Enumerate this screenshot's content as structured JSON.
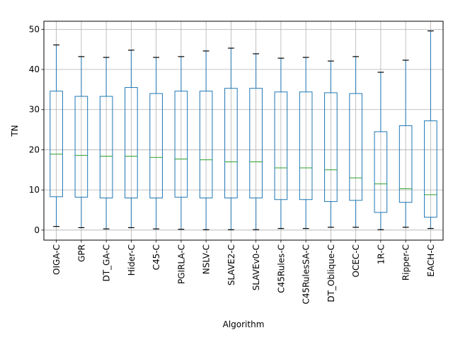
{
  "chart_data": {
    "type": "box",
    "xlabel": "Algorithm",
    "ylabel": "TN",
    "ylim": [
      -2.5,
      52
    ],
    "yticks": [
      0,
      10,
      20,
      30,
      40,
      50
    ],
    "grid": true,
    "categories": [
      "OIGA-C",
      "GPR",
      "DT_GA-C",
      "Hider-C",
      "C45-C",
      "PGIRLA-C",
      "NSLV-C",
      "SLAVE2-C",
      "SLAVEv0-C",
      "C45Rules-C",
      "C45RulesSA-C",
      "DT_Oblique-C",
      "OCEC-C",
      "1R-C",
      "Ripper-C",
      "EACH-C"
    ],
    "boxes": [
      {
        "min": 0.9,
        "q1": 8.3,
        "median": 18.9,
        "q3": 34.6,
        "max": 46.1
      },
      {
        "min": 0.6,
        "q1": 8.2,
        "median": 18.6,
        "q3": 33.3,
        "max": 43.2
      },
      {
        "min": 0.3,
        "q1": 8.0,
        "median": 18.4,
        "q3": 33.3,
        "max": 43.0
      },
      {
        "min": 0.6,
        "q1": 8.0,
        "median": 18.4,
        "q3": 35.5,
        "max": 44.8
      },
      {
        "min": 0.3,
        "q1": 8.0,
        "median": 18.1,
        "q3": 34.0,
        "max": 43.0
      },
      {
        "min": 0.2,
        "q1": 8.2,
        "median": 17.7,
        "q3": 34.6,
        "max": 43.2
      },
      {
        "min": 0.1,
        "q1": 8.0,
        "median": 17.5,
        "q3": 34.6,
        "max": 44.6
      },
      {
        "min": 0.1,
        "q1": 8.0,
        "median": 17.0,
        "q3": 35.3,
        "max": 45.3
      },
      {
        "min": 0.1,
        "q1": 8.0,
        "median": 17.0,
        "q3": 35.3,
        "max": 43.9
      },
      {
        "min": 0.4,
        "q1": 7.6,
        "median": 15.5,
        "q3": 34.4,
        "max": 42.8
      },
      {
        "min": 0.4,
        "q1": 7.6,
        "median": 15.5,
        "q3": 34.4,
        "max": 43.0
      },
      {
        "min": 0.7,
        "q1": 7.1,
        "median": 15.0,
        "q3": 34.2,
        "max": 42.1
      },
      {
        "min": 0.7,
        "q1": 7.4,
        "median": 13.0,
        "q3": 34.0,
        "max": 43.2
      },
      {
        "min": 0.1,
        "q1": 4.4,
        "median": 11.5,
        "q3": 24.5,
        "max": 39.3
      },
      {
        "min": 0.7,
        "q1": 6.9,
        "median": 10.3,
        "q3": 26.0,
        "max": 42.3
      },
      {
        "min": 0.4,
        "q1": 3.2,
        "median": 8.8,
        "q3": 27.2,
        "max": 49.6
      }
    ],
    "colors": {
      "box": "#1f77b4",
      "median": "#2ca02c",
      "whisker": "#1f77b4",
      "cap": "#000000",
      "grid": "#b0b0b0"
    }
  }
}
